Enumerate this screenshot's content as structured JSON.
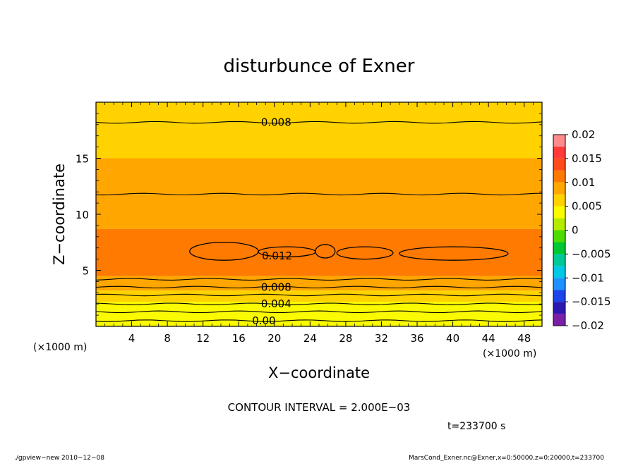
{
  "title": "disturbunce of Exner",
  "xlabel": "X−coordinate",
  "ylabel": "Z−coordinate",
  "x_unit_label": "(×1000 m)",
  "y_unit_label": "(×1000 m)",
  "contour_interval": "CONTOUR INTERVAL = 2.000E−03",
  "time_label": "t=233700 s",
  "footer_left": "./gpview−new   2010−12−08",
  "footer_right": "MarsCond_Exner.nc@Exner,x=0:50000,z=0:20000,t=233700",
  "chart_data": {
    "type": "heatmap",
    "title": "disturbunce of Exner",
    "xlabel": "X−coordinate",
    "ylabel": "Z−coordinate",
    "xlim": [
      0,
      50
    ],
    "ylim": [
      0,
      20
    ],
    "x_ticks": [
      4,
      8,
      12,
      16,
      20,
      24,
      28,
      32,
      36,
      40,
      44,
      48
    ],
    "x_tick_labels": [
      "4",
      "8",
      "12",
      "16",
      "20",
      "24",
      "28",
      "32",
      "36",
      "40",
      "44",
      "48"
    ],
    "y_ticks": [
      5,
      10,
      15
    ],
    "y_tick_labels": [
      "5",
      "10",
      "15"
    ],
    "colorbar": {
      "range": [
        -0.02,
        0.02
      ],
      "tick_values": [
        0.02,
        0.015,
        0.01,
        0.005,
        0,
        -0.005,
        -0.01,
        -0.015,
        -0.02
      ],
      "tick_labels": [
        "0.02",
        "0.015",
        "0.01",
        "0.005",
        "0",
        "−0.005",
        "−0.01",
        "−0.015",
        "−0.02"
      ],
      "level_step": 0.0025,
      "colors": [
        "#7a1fa8",
        "#2c1ab0",
        "#1c44e8",
        "#1e90ff",
        "#00c8e6",
        "#00c896",
        "#00c832",
        "#4cdc00",
        "#b4ec00",
        "#fafa00",
        "#ffd200",
        "#ffa600",
        "#ff7a00",
        "#ff4a1a",
        "#ff3a3a",
        "#ff8a8a"
      ]
    },
    "field_bands": [
      {
        "z": [
          0.0,
          0.5
        ],
        "value": 0.0025
      },
      {
        "z": [
          0.5,
          1.2
        ],
        "value": 0.0035
      },
      {
        "z": [
          1.2,
          2.2
        ],
        "value": 0.0045
      },
      {
        "z": [
          2.2,
          3.2
        ],
        "value": 0.006
      },
      {
        "z": [
          3.2,
          3.9
        ],
        "value": 0.0075
      },
      {
        "z": [
          3.9,
          4.5
        ],
        "value": 0.009
      },
      {
        "z": [
          4.5,
          8.7
        ],
        "value": 0.011
      },
      {
        "z": [
          8.7,
          11.8
        ],
        "value": 0.0095
      },
      {
        "z": [
          11.8,
          15.0
        ],
        "value": 0.0085
      },
      {
        "z": [
          15.0,
          20.0
        ],
        "value": 0.0072
      }
    ],
    "contours": [
      {
        "level": 0.008,
        "z": 18.2,
        "label": "0.008",
        "label_x": 18.5
      },
      {
        "level": 0.01,
        "z": 11.8
      },
      {
        "level": 0.01,
        "z": 4.2
      },
      {
        "level": 0.008,
        "z": 3.5,
        "label": "0.008",
        "label_x": 18.5
      },
      {
        "level": 0.006,
        "z": 2.8
      },
      {
        "level": 0.004,
        "z": 2.0,
        "label": "0.004",
        "label_x": 18.5
      },
      {
        "level": 0.002,
        "z": 1.3
      },
      {
        "level": 0.0,
        "z": 0.5,
        "label": "0.00",
        "label_x": 17.5
      }
    ],
    "closed_contours": [
      {
        "level": 0.012,
        "x": [
          10.5,
          18.2
        ],
        "z": [
          5.9,
          7.5
        ],
        "label": "0.012",
        "label_x": 18.6,
        "label_z": 6.3
      },
      {
        "level": 0.012,
        "x": [
          18.2,
          24.6
        ],
        "z": [
          6.2,
          7.1
        ]
      },
      {
        "level": 0.012,
        "x": [
          24.6,
          26.8
        ],
        "z": [
          6.1,
          7.3
        ]
      },
      {
        "level": 0.012,
        "x": [
          27.0,
          33.3
        ],
        "z": [
          6.0,
          7.1
        ]
      },
      {
        "level": 0.012,
        "x": [
          34.0,
          46.2
        ],
        "z": [
          5.9,
          7.1
        ]
      }
    ]
  }
}
